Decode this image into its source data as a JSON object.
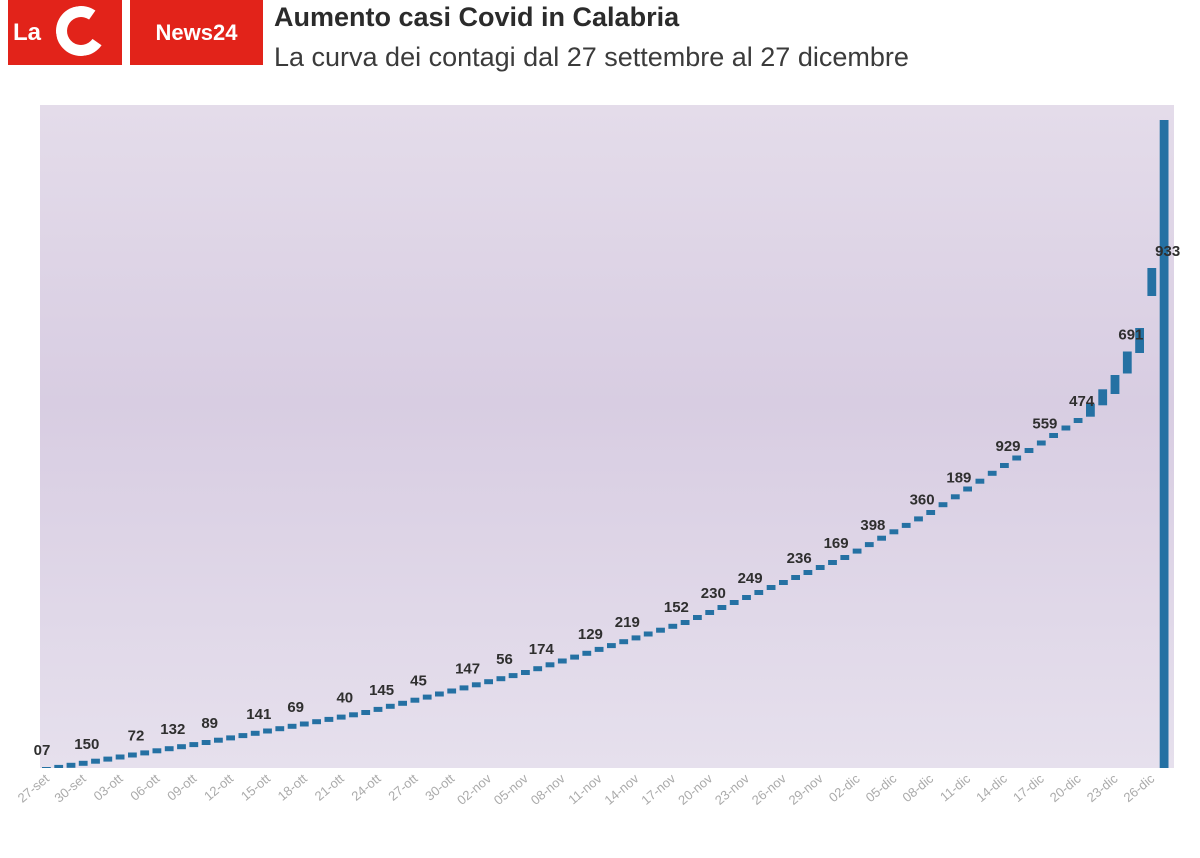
{
  "logo": {
    "left_text": "La",
    "right_text": "News24",
    "brand_color": "#e2231a"
  },
  "header": {
    "title": "Aumento casi Covid in Calabria",
    "subtitle": "La curva dei contagi dal 27 settembre al 27 dicembre"
  },
  "colors": {
    "bar": "#2571a3",
    "background_tint": "#ddd3e6",
    "tick": "#aaaaaa"
  },
  "chart_data": {
    "type": "bar",
    "x_ticks": [
      "27-set",
      "30-set",
      "03-ott",
      "06-ott",
      "09-ott",
      "12-ott",
      "15-ott",
      "18-ott",
      "21-ott",
      "24-ott",
      "27-ott",
      "30-ott",
      "02-nov",
      "05-nov",
      "08-nov",
      "11-nov",
      "14-nov",
      "17-nov",
      "20-nov",
      "23-nov",
      "26-nov",
      "29-nov",
      "02-dic",
      "05-dic",
      "08-dic",
      "11-dic",
      "14-dic",
      "17-dic",
      "20-dic",
      "23-dic",
      "26-dic"
    ],
    "data_labels": [
      "07",
      "150",
      "72",
      "132",
      "89",
      "141",
      "69",
      "40",
      "145",
      "45",
      "147",
      "56",
      "174",
      "129",
      "219",
      "152",
      "230",
      "249",
      "236",
      "169",
      "398",
      "360",
      "189",
      "929",
      "559",
      "474",
      "691",
      "933"
    ],
    "grid": false,
    "legend": "none"
  }
}
